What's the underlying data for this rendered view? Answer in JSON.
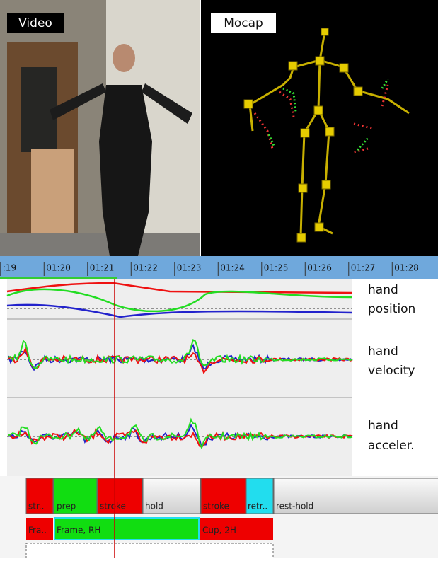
{
  "video_panel": {
    "label": "Video"
  },
  "mocap_panel": {
    "label": "Mocap"
  },
  "timeline": {
    "ticks": [
      ":19",
      "01:20",
      "01:21",
      "01:22",
      "01:23",
      "01:24",
      "01:25",
      "01:26",
      "01:27",
      "01:28"
    ]
  },
  "signals": [
    {
      "label_lines": [
        "hand",
        "position"
      ]
    },
    {
      "label_lines": [
        "hand",
        "velocity"
      ]
    },
    {
      "label_lines": [
        "hand",
        "acceler."
      ]
    }
  ],
  "tracks": [
    {
      "segments": [
        "str..",
        "prep",
        "stroke",
        "hold",
        "stroke",
        "retr..",
        "rest-hold"
      ]
    },
    {
      "segments": [
        "Fra..",
        "Frame, RH",
        "Cup, 2H"
      ]
    }
  ]
}
